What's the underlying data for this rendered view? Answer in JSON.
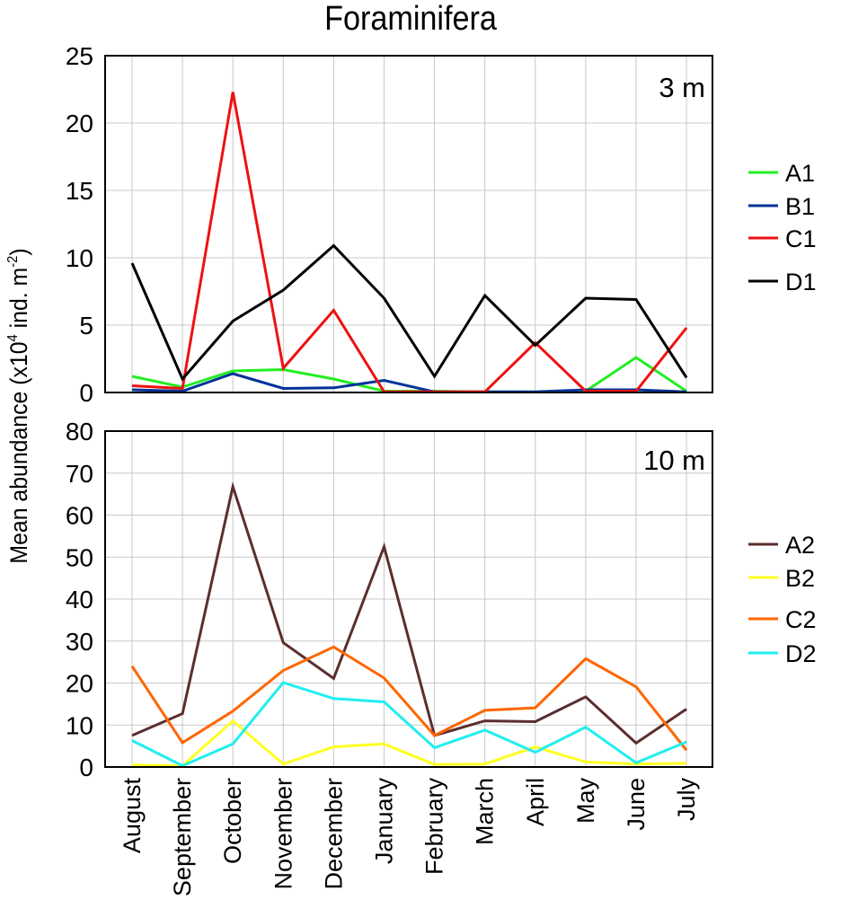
{
  "chart_data": [
    {
      "type": "line",
      "title": "Foraminifera",
      "panel_label": "3 m",
      "ylabel": "Mean abundance (x10^4 ind. m^-2)",
      "ylabel_parts": {
        "base": "Mean abundance (x10",
        "sup1": "4",
        "mid": " ind. m",
        "sup2": "-2",
        "end": ")"
      },
      "categories": [
        "August",
        "September",
        "October",
        "November",
        "December",
        "January",
        "February",
        "March",
        "April",
        "May",
        "June",
        "July"
      ],
      "ylim": [
        0,
        25
      ],
      "yticks": [
        0,
        5,
        10,
        15,
        20,
        25
      ],
      "grid": true,
      "legend_placement": "right",
      "series": [
        {
          "name": "A1",
          "color": "#22ee22",
          "values": [
            1.2,
            0.4,
            1.6,
            1.7,
            1.0,
            0.1,
            0.1,
            0.05,
            0.05,
            0.1,
            2.6,
            0.1
          ]
        },
        {
          "name": "B1",
          "color": "#003399",
          "values": [
            0.2,
            0.1,
            1.4,
            0.3,
            0.35,
            0.9,
            0.05,
            0.05,
            0.05,
            0.2,
            0.2,
            0.05
          ]
        },
        {
          "name": "C1",
          "color": "#ee1111",
          "values": [
            0.5,
            0.3,
            22.3,
            1.8,
            6.1,
            0.05,
            0.05,
            0.05,
            3.7,
            0.1,
            0.1,
            4.8
          ]
        },
        {
          "name": "D1",
          "color": "#000000",
          "values": [
            9.6,
            1.0,
            5.3,
            7.6,
            10.9,
            7.0,
            1.2,
            7.2,
            3.5,
            7.0,
            6.9,
            1.1
          ]
        }
      ]
    },
    {
      "type": "line",
      "panel_label": "10 m",
      "categories": [
        "August",
        "September",
        "October",
        "November",
        "December",
        "January",
        "February",
        "March",
        "April",
        "May",
        "June",
        "July"
      ],
      "ylim": [
        0,
        80
      ],
      "yticks": [
        0,
        10,
        20,
        30,
        40,
        50,
        60,
        70,
        80
      ],
      "grid": true,
      "legend_placement": "right",
      "series": [
        {
          "name": "A2",
          "color": "#5c2e2e",
          "values": [
            7.5,
            12.7,
            66.8,
            29.6,
            21.1,
            52.5,
            7.5,
            11.0,
            10.8,
            16.7,
            5.7,
            13.8
          ]
        },
        {
          "name": "B2",
          "color": "#ffff22",
          "values": [
            0.5,
            0.3,
            11.0,
            0.7,
            4.8,
            5.5,
            0.6,
            0.7,
            4.8,
            1.2,
            0.7,
            0.9
          ]
        },
        {
          "name": "C2",
          "color": "#ff6600",
          "values": [
            24.0,
            5.8,
            13.3,
            23.0,
            28.6,
            21.2,
            7.5,
            13.5,
            14.1,
            25.8,
            19.1,
            4.0
          ]
        },
        {
          "name": "D2",
          "color": "#22eeee",
          "values": [
            6.3,
            0.3,
            5.5,
            20.1,
            16.3,
            15.5,
            4.6,
            8.8,
            3.5,
            9.5,
            1.0,
            6.0
          ]
        }
      ]
    }
  ]
}
